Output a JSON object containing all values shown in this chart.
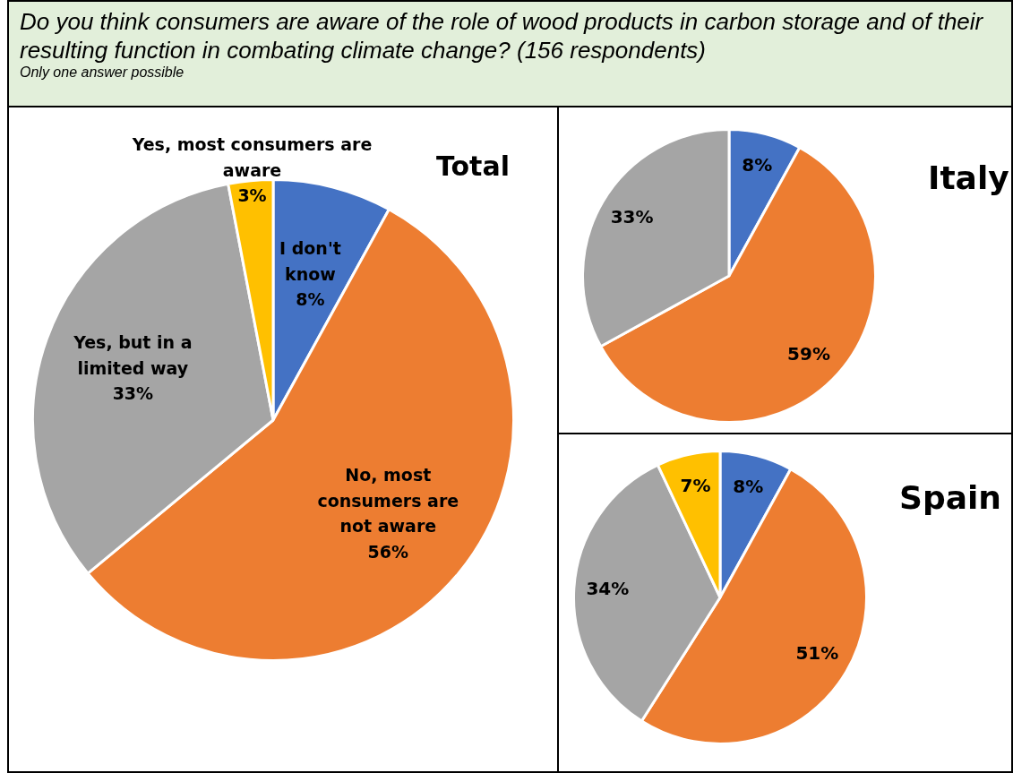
{
  "chart_data": [
    {
      "type": "other",
      "title": "Do you think consumers are aware of the role of wood products in carbon storage and of their resulting function in combating climate change? (156 respondents)",
      "subtitle": "Only one answer possible"
    },
    {
      "type": "pie",
      "title": "Total",
      "categories": [
        "I don't know",
        "No, most consumers are not aware",
        "Yes, but in a limited way",
        "Yes, most consumers are aware"
      ],
      "values": [
        8,
        56,
        33,
        3
      ],
      "value_labels": [
        "8%",
        "56%",
        "33%",
        "3%"
      ],
      "colors": [
        "#4472c4",
        "#ed7d31",
        "#a5a5a5",
        "#ffc000"
      ]
    },
    {
      "type": "pie",
      "title": "Italy",
      "categories": [
        null,
        null,
        null
      ],
      "values": [
        8,
        59,
        33
      ],
      "value_labels": [
        "8%",
        "59%",
        "33%"
      ],
      "colors": [
        "#4472c4",
        "#ed7d31",
        "#a5a5a5"
      ]
    },
    {
      "type": "pie",
      "title": "Spain",
      "categories": [
        null,
        null,
        null,
        null
      ],
      "values": [
        8,
        51,
        34,
        7
      ],
      "value_labels": [
        "8%",
        "51%",
        "34%",
        "7%"
      ],
      "colors": [
        "#4472c4",
        "#ed7d31",
        "#a5a5a5",
        "#ffc000"
      ]
    }
  ]
}
